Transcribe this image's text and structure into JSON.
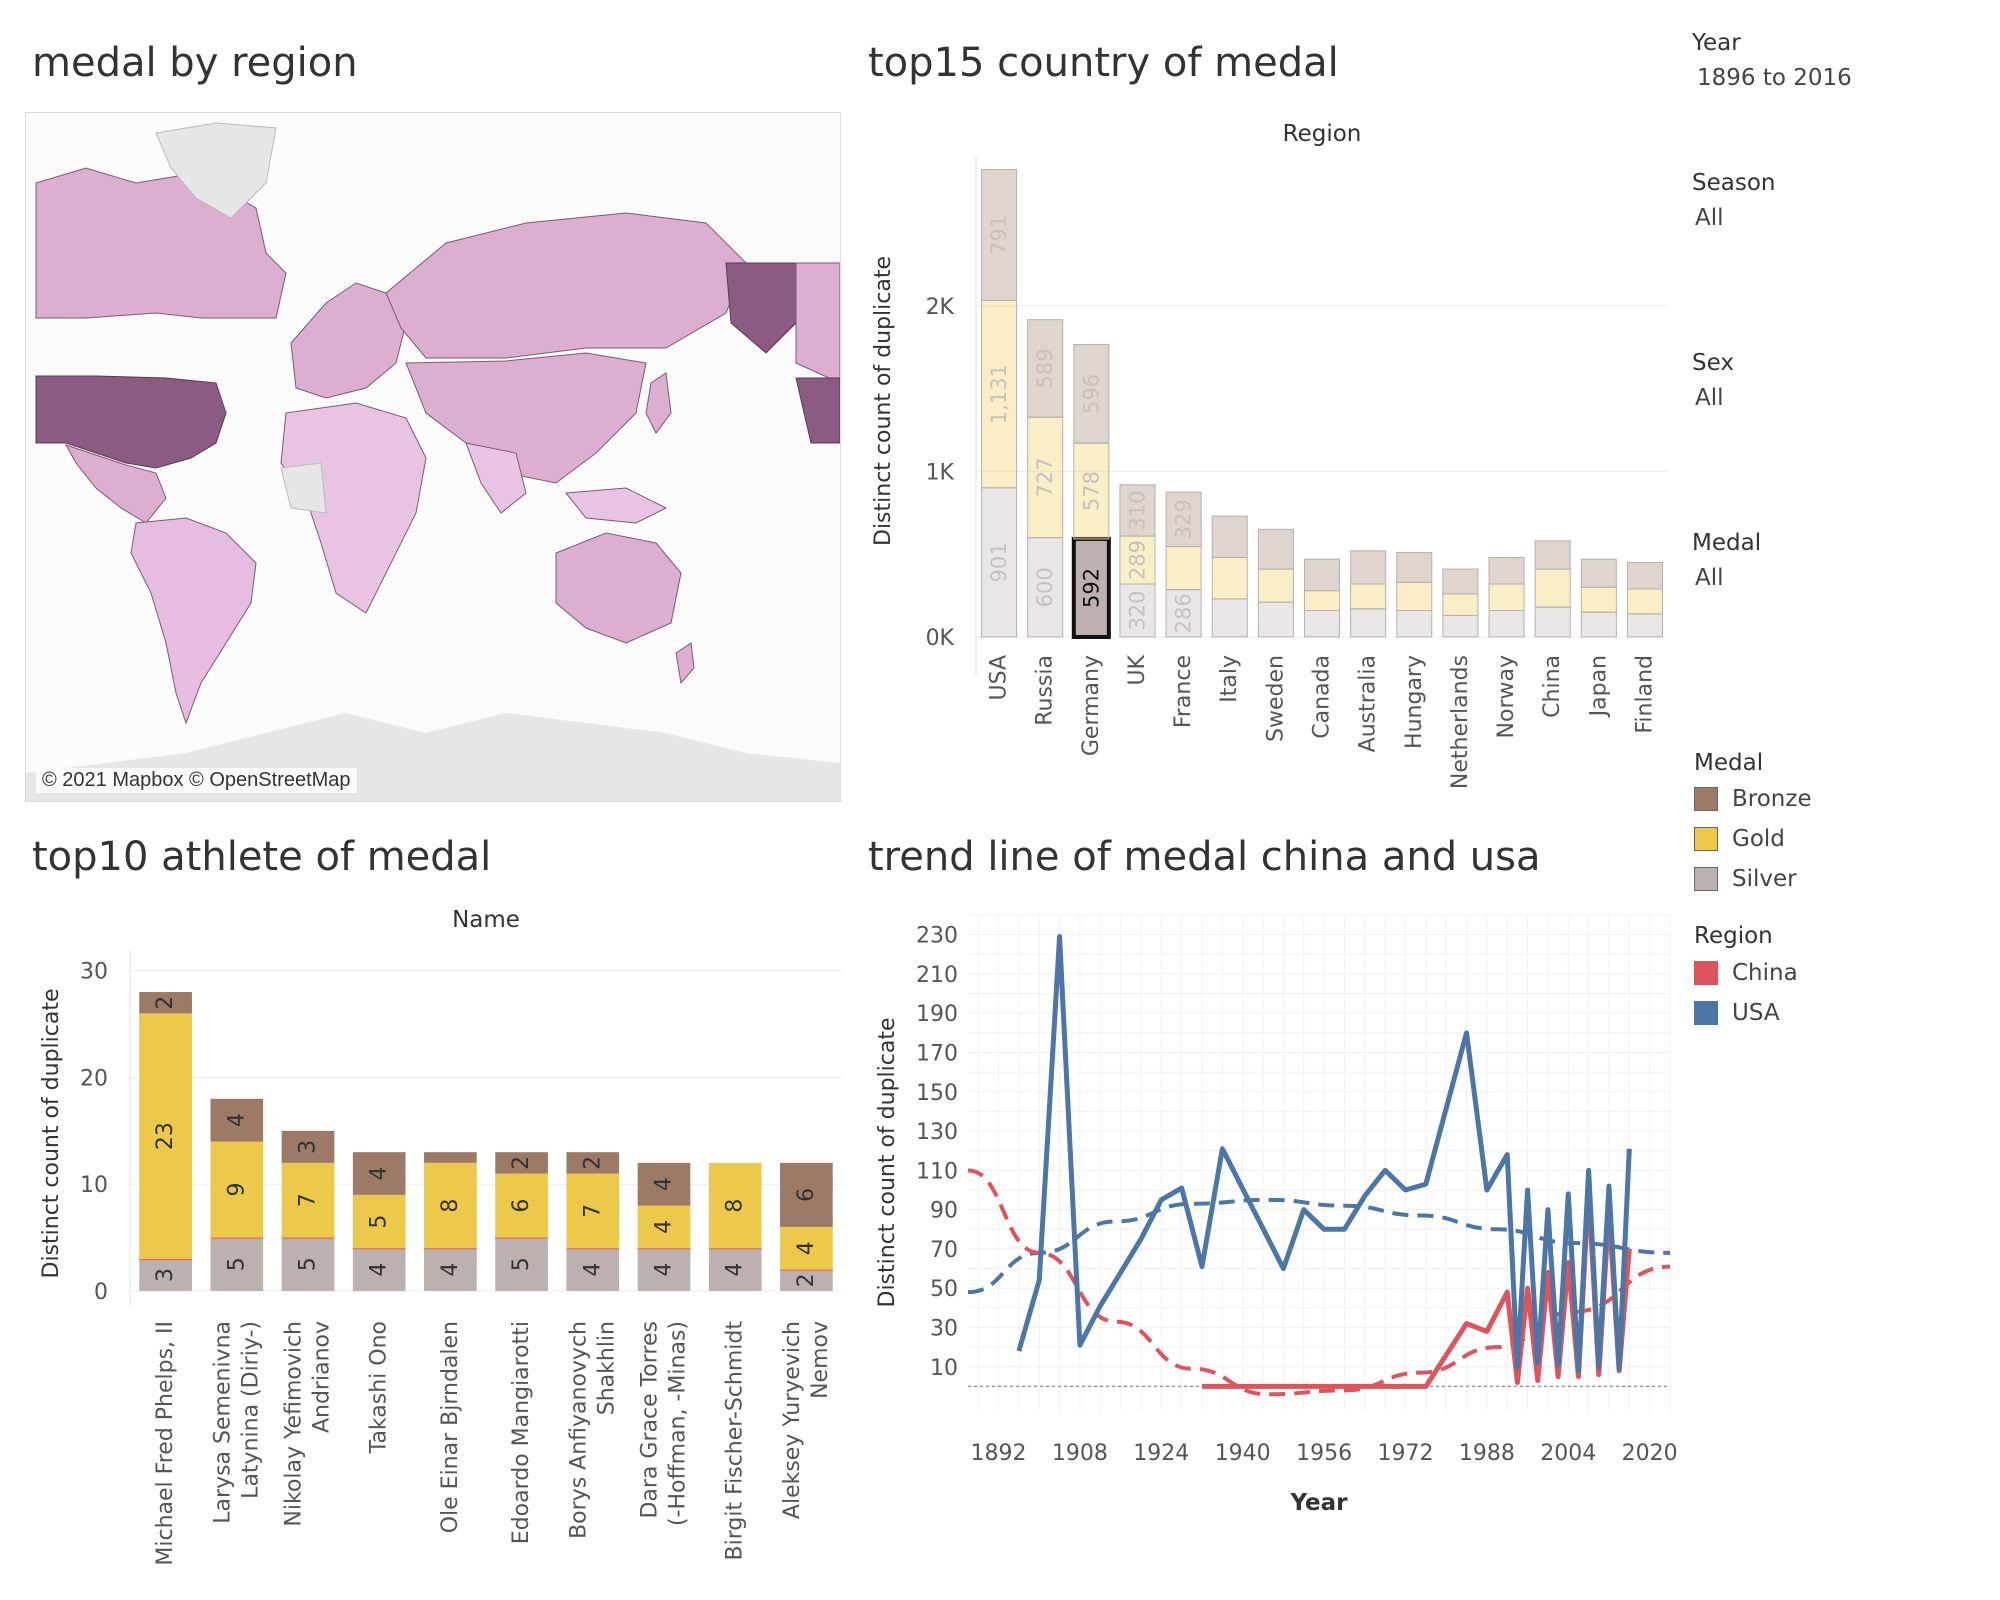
{
  "map_panel": {
    "title": "medal by region",
    "credit": "© 2021 Mapbox © OpenStreetMap"
  },
  "filters": {
    "year": {
      "label": "Year",
      "value": "1896 to 2016"
    },
    "season": {
      "label": "Season",
      "value": "All"
    },
    "sex": {
      "label": "Sex",
      "value": "All"
    },
    "medal": {
      "label": "Medal",
      "value": "All"
    }
  },
  "legends": {
    "medal": {
      "title": "Medal",
      "items": [
        {
          "label": "Bronze",
          "color": "#9c7a66"
        },
        {
          "label": "Gold",
          "color": "#ecc94b"
        },
        {
          "label": "Silver",
          "color": "#bcb1ae"
        }
      ]
    },
    "region": {
      "title": "Region",
      "items": [
        {
          "label": "China",
          "color": "#de545c"
        },
        {
          "label": "USA",
          "color": "#4b76a6"
        }
      ]
    }
  },
  "chart_data": [
    {
      "id": "top15",
      "type": "bar",
      "title": "top15 country of medal",
      "header": "Region",
      "ylabel": "Distinct count of duplicate",
      "ylim": [
        0,
        2850
      ],
      "yticks": [
        {
          "value": 0,
          "label": "0K"
        },
        {
          "value": 1000,
          "label": "1K"
        },
        {
          "value": 2000,
          "label": "2K"
        }
      ],
      "categories": [
        "USA",
        "Russia",
        "Germany",
        "UK",
        "France",
        "Italy",
        "Sweden",
        "Canada",
        "Australia",
        "Hungary",
        "Netherlands",
        "Norway",
        "China",
        "Japan",
        "Finland"
      ],
      "series": [
        {
          "name": "Silver",
          "values": [
            901,
            600,
            592,
            320,
            286,
            230,
            210,
            160,
            170,
            160,
            130,
            160,
            180,
            150,
            140
          ]
        },
        {
          "name": "Gold",
          "values": [
            1131,
            727,
            578,
            289,
            260,
            250,
            200,
            120,
            150,
            170,
            130,
            160,
            230,
            150,
            150
          ]
        },
        {
          "name": "Bronze",
          "values": [
            791,
            589,
            596,
            310,
            329,
            250,
            240,
            190,
            200,
            180,
            150,
            160,
            170,
            170,
            160
          ]
        }
      ],
      "value_labels": [
        [
          "901",
          "1,131",
          "791"
        ],
        [
          "600",
          "727",
          "589"
        ],
        [
          "592",
          "578",
          "596"
        ],
        [
          "320",
          "289",
          "310"
        ],
        [
          "286",
          "",
          "329"
        ],
        [
          "",
          "",
          ""
        ],
        [
          "",
          "",
          ""
        ],
        [
          "",
          "",
          ""
        ],
        [
          "",
          "",
          ""
        ],
        [
          "",
          "",
          ""
        ],
        [
          "",
          "",
          ""
        ],
        [
          "",
          "",
          ""
        ],
        [
          "",
          "",
          ""
        ],
        [
          "",
          "",
          ""
        ],
        [
          "",
          "",
          ""
        ]
      ],
      "highlight": {
        "category": "Germany",
        "series": "Silver"
      }
    },
    {
      "id": "top10",
      "type": "bar",
      "title": "top10 athlete of medal",
      "header": "Name",
      "ylabel": "Distinct count of duplicate",
      "ylim": [
        -1.5,
        31
      ],
      "yticks": [
        {
          "value": 0,
          "label": "0"
        },
        {
          "value": 10,
          "label": "10"
        },
        {
          "value": 20,
          "label": "20"
        },
        {
          "value": 30,
          "label": "30"
        }
      ],
      "categories": [
        "Michael Fred Phelps, II",
        "Larysa Semenivna Latynina (Diriy-)",
        "Nikolay Yefimovich Andrianov",
        "Takashi Ono",
        "Ole Einar Bjrndalen",
        "Edoardo Mangiarotti",
        "Borys Anfiyanovych Shakhlin",
        "Dara Grace Torres (-Hoffman, -Minas)",
        "Birgit Fischer-Schmidt",
        "Aleksey Yuryevich Nemov"
      ],
      "category_lines": [
        [
          "Michael Fred Phelps, II"
        ],
        [
          "Larysa Semenivna",
          "Latynina (Diriy-)"
        ],
        [
          "Nikolay Yefimovich",
          "Andrianov"
        ],
        [
          "Takashi Ono"
        ],
        [
          "Ole Einar Bjrndalen"
        ],
        [
          "Edoardo Mangiarotti"
        ],
        [
          "Borys Anfiyanovych",
          "Shakhlin"
        ],
        [
          "Dara Grace Torres",
          "(-Hoffman, -Minas)"
        ],
        [
          "Birgit Fischer-Schmidt"
        ],
        [
          "Aleksey Yuryevich",
          "Nemov"
        ]
      ],
      "series": [
        {
          "name": "Silver",
          "values": [
            3,
            5,
            5,
            4,
            4,
            5,
            4,
            4,
            4,
            2
          ]
        },
        {
          "name": "Gold",
          "values": [
            23,
            9,
            7,
            5,
            8,
            6,
            7,
            4,
            8,
            4
          ]
        },
        {
          "name": "Bronze",
          "values": [
            2,
            4,
            3,
            4,
            1,
            2,
            2,
            4,
            0,
            6
          ]
        }
      ],
      "value_labels": [
        [
          "3",
          "23",
          "2"
        ],
        [
          "5",
          "9",
          "4"
        ],
        [
          "5",
          "7",
          "3"
        ],
        [
          "4",
          "5",
          "4"
        ],
        [
          "4",
          "8",
          ""
        ],
        [
          "5",
          "6",
          "2"
        ],
        [
          "4",
          "7",
          "2"
        ],
        [
          "4",
          "4",
          "4"
        ],
        [
          "4",
          "8",
          ""
        ],
        [
          "2",
          "4",
          "6"
        ]
      ]
    },
    {
      "id": "trend",
      "type": "line",
      "title": "trend line of medal china and usa",
      "xlabel": "Year",
      "ylabel": "Distinct count of duplicate",
      "xlim": [
        1886,
        2024
      ],
      "ylim": [
        -12,
        240
      ],
      "xticks": [
        1892,
        1908,
        1924,
        1940,
        1956,
        1972,
        1988,
        2004,
        2020
      ],
      "yticks": [
        10,
        30,
        50,
        70,
        90,
        110,
        130,
        150,
        170,
        190,
        210,
        230
      ],
      "series": [
        {
          "name": "USA",
          "x": [
            1896,
            1900,
            1904,
            1908,
            1912,
            1920,
            1924,
            1928,
            1932,
            1936,
            1948,
            1952,
            1956,
            1960,
            1964,
            1968,
            1972,
            1976,
            1984,
            1988,
            1992,
            1994,
            1996,
            1998,
            2000,
            2002,
            2004,
            2006,
            2008,
            2010,
            2012,
            2014,
            2016
          ],
          "y": [
            18,
            54,
            229,
            21,
            41,
            75,
            95,
            101,
            61,
            121,
            60,
            90,
            80,
            80,
            97,
            110,
            100,
            103,
            180,
            100,
            118,
            10,
            100,
            12,
            90,
            11,
            98,
            8,
            110,
            10,
            102,
            9,
            121
          ]
        },
        {
          "name": "China",
          "x": [
            1932,
            1936,
            1940,
            1944,
            1948,
            1952,
            1956,
            1960,
            1964,
            1968,
            1972,
            1976,
            1984,
            1988,
            1992,
            1994,
            1996,
            1998,
            2000,
            2002,
            2004,
            2006,
            2008,
            2010,
            2012,
            2014,
            2016
          ],
          "y": [
            0,
            0,
            0,
            0,
            0,
            0,
            0,
            0,
            0,
            0,
            0,
            0,
            32,
            28,
            48,
            2,
            50,
            3,
            58,
            5,
            63,
            5,
            100,
            6,
            90,
            8,
            70
          ]
        }
      ],
      "trend_lines": [
        {
          "name": "USA",
          "x": [
            1886,
            1900,
            1915,
            1930,
            1945,
            1960,
            1975,
            1990,
            2005,
            2024
          ],
          "y": [
            48,
            68,
            84,
            93,
            95,
            92,
            87,
            80,
            73,
            68
          ]
        },
        {
          "name": "China",
          "x": [
            1886,
            1900,
            1915,
            1930,
            1945,
            1960,
            1975,
            1990,
            2005,
            2024
          ],
          "y": [
            110,
            68,
            33,
            9,
            -4,
            -2,
            7,
            20,
            38,
            61
          ]
        }
      ]
    }
  ]
}
